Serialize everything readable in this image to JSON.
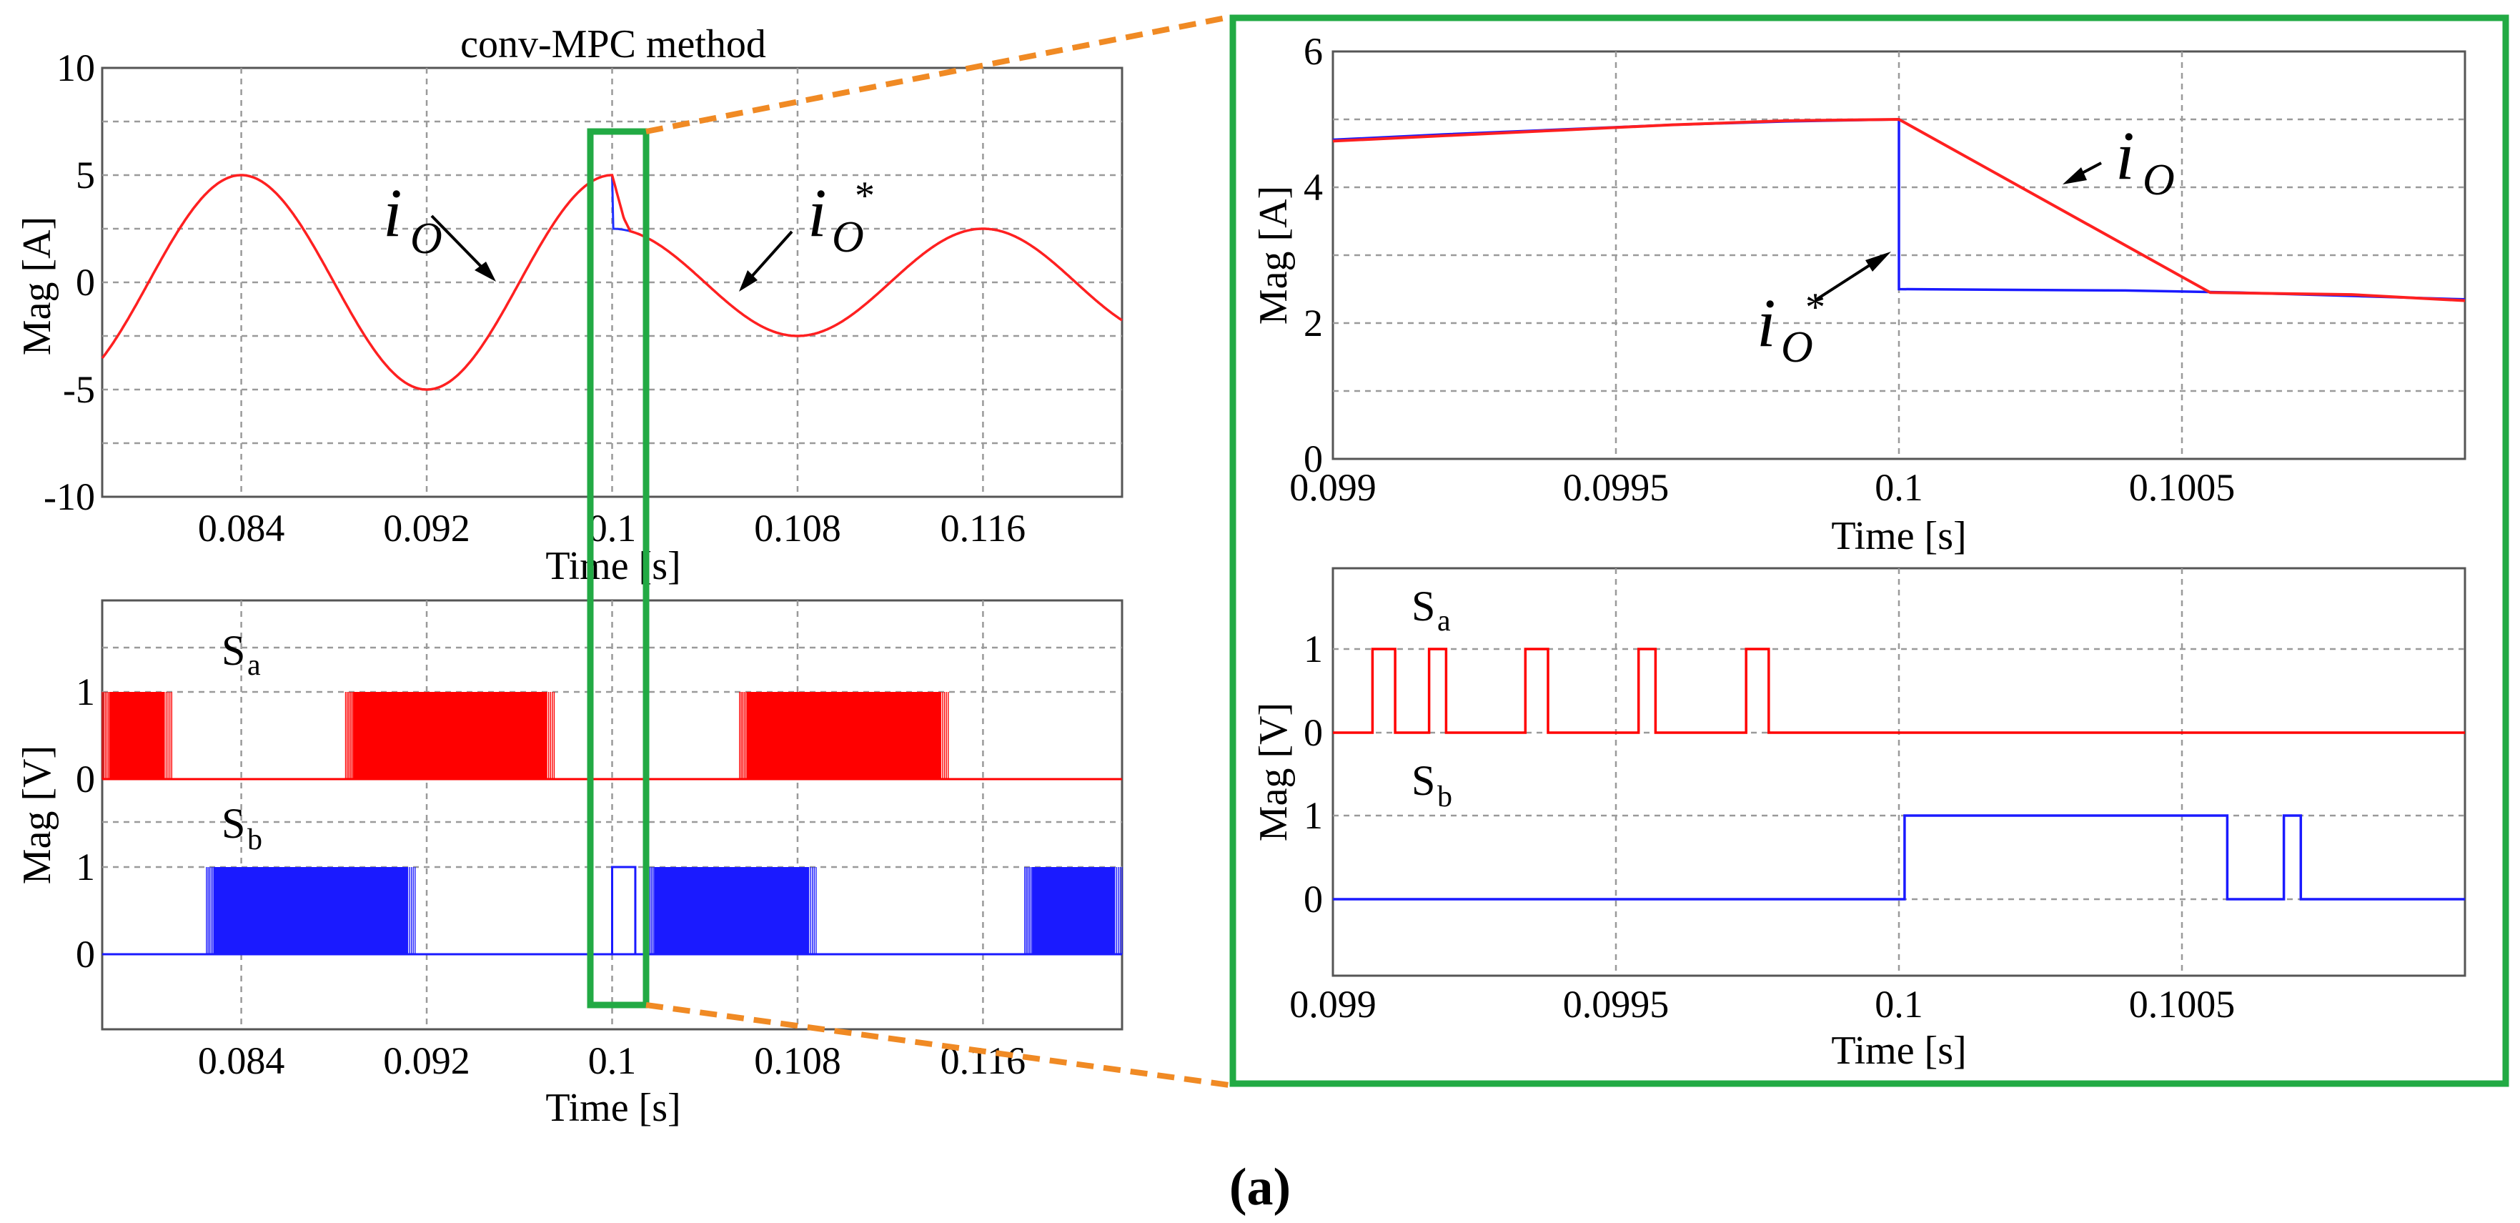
{
  "caption": "(a)",
  "chart_data": [
    {
      "id": "overview-current",
      "type": "line",
      "title": "conv-MPC method",
      "xlabel": "Time [s]",
      "ylabel": "Mag [A]",
      "xlim": [
        0.078,
        0.122
      ],
      "ylim": [
        -10,
        10
      ],
      "xticks": [
        0.084,
        0.092,
        0.1,
        0.108,
        0.116
      ],
      "xtick_labels": [
        "0.084",
        "0.092",
        "0.1",
        "0.108",
        "0.116"
      ],
      "yticks": [
        -10,
        -5,
        0,
        5,
        10
      ],
      "ytick_labels": [
        "-10",
        "-5",
        "0",
        "5",
        "10"
      ],
      "ygrid": [
        -7.5,
        -5,
        -2.5,
        0,
        2.5,
        5,
        7.5
      ],
      "series": [
        {
          "name": "i_o*",
          "color": "#1f2fff",
          "description": "reference current: 5 A amplitude sine stepping to 2.5 A at t = 0.1 s",
          "amp_before": 5,
          "amp_after": 2.5,
          "step_time": 0.1,
          "period": 0.016,
          "peak_time": 0.084
        },
        {
          "name": "i_o",
          "color": "#ff2020",
          "description": "output current following reference with ramp after step",
          "points": [
            [
              0.1,
              5.0
            ],
            [
              0.1005,
              3.0
            ],
            [
              0.10075,
              2.45
            ]
          ]
        }
      ],
      "annotations": [
        {
          "label": "i",
          "sub": "O",
          "sup": "",
          "target": "i_o"
        },
        {
          "label": "i",
          "sub": "O",
          "sup": "*",
          "target": "i_o*"
        }
      ]
    },
    {
      "id": "overview-switching",
      "type": "line",
      "xlabel": "Time [s]",
      "ylabel": "Mag [V]",
      "xlim": [
        0.078,
        0.122
      ],
      "xticks": [
        0.084,
        0.092,
        0.1,
        0.108,
        0.116
      ],
      "xtick_labels": [
        "0.084",
        "0.092",
        "0.1",
        "0.108",
        "0.116"
      ],
      "yticks_upper": [
        0,
        1
      ],
      "yticks_lower": [
        0,
        1
      ],
      "ytick_labels": [
        "0",
        "1"
      ],
      "series": [
        {
          "name": "S",
          "sub": "a",
          "color": "#ff0000",
          "high_bands": [
            [
              0.078,
              0.081
            ],
            [
              0.0885,
              0.0975
            ],
            [
              0.1055,
              0.1145
            ]
          ]
        },
        {
          "name": "S",
          "sub": "b",
          "color": "#1a1aff",
          "high_bands": [
            [
              0.0825,
              0.0915
            ],
            [
              0.1,
              0.101
            ],
            [
              0.1015,
              0.1088
            ],
            [
              0.1178,
              0.122
            ]
          ]
        }
      ]
    },
    {
      "id": "zoom-current",
      "type": "line",
      "xlabel": "Time [s]",
      "ylabel": "Mag [A]",
      "xlim": [
        0.099,
        0.101
      ],
      "ylim": [
        0,
        6
      ],
      "xticks": [
        0.099,
        0.0995,
        0.1,
        0.1005
      ],
      "xtick_labels": [
        "0.099",
        "0.0995",
        "0.1",
        "0.1005"
      ],
      "yticks": [
        0,
        2,
        4,
        6
      ],
      "ytick_labels": [
        "0",
        "2",
        "4",
        "6"
      ],
      "ygrid": [
        1,
        2,
        3,
        4,
        5
      ],
      "xgrid": [
        0.0995,
        0.1,
        0.1005
      ],
      "series": [
        {
          "name": "i_o*",
          "color": "#1a1aff",
          "points": [
            [
              0.099,
              4.7
            ],
            [
              0.0992,
              4.78
            ],
            [
              0.0994,
              4.85
            ],
            [
              0.0996,
              4.92
            ],
            [
              0.0998,
              4.97
            ],
            [
              0.1,
              5.0
            ],
            [
              0.1,
              2.5
            ],
            [
              0.1004,
              2.48
            ],
            [
              0.1006,
              2.45
            ],
            [
              0.1008,
              2.4
            ],
            [
              0.101,
              2.35
            ]
          ]
        },
        {
          "name": "i_o",
          "color": "#ff2020",
          "points": [
            [
              0.099,
              4.68
            ],
            [
              0.0992,
              4.76
            ],
            [
              0.0994,
              4.84
            ],
            [
              0.0996,
              4.92
            ],
            [
              0.0998,
              4.98
            ],
            [
              0.1,
              5.0
            ],
            [
              0.10055,
              2.45
            ],
            [
              0.1008,
              2.42
            ],
            [
              0.101,
              2.33
            ]
          ]
        }
      ],
      "annotations": [
        {
          "label": "i",
          "sub": "O",
          "sup": "",
          "target": "i_o"
        },
        {
          "label": "i",
          "sub": "O",
          "sup": "*",
          "target": "i_o*"
        }
      ]
    },
    {
      "id": "zoom-switching",
      "type": "line",
      "xlabel": "Time [s]",
      "ylabel": "Mag [V]",
      "xlim": [
        0.099,
        0.101
      ],
      "xticks": [
        0.099,
        0.0995,
        0.1,
        0.1005
      ],
      "xtick_labels": [
        "0.099",
        "0.0995",
        "0.1",
        "0.1005"
      ],
      "ytick_labels": [
        "0",
        "1"
      ],
      "series": [
        {
          "name": "S",
          "sub": "a",
          "color": "#ff0000",
          "pulses": [
            [
              0.09907,
              0.09911
            ],
            [
              0.09917,
              0.0992
            ],
            [
              0.09934,
              0.09938
            ],
            [
              0.09954,
              0.09957
            ],
            [
              0.09973,
              0.09977
            ]
          ]
        },
        {
          "name": "S",
          "sub": "b",
          "color": "#1a1aff",
          "pulses": [
            [
              0.10001,
              0.10058
            ],
            [
              0.10068,
              0.10071
            ]
          ]
        }
      ]
    }
  ]
}
